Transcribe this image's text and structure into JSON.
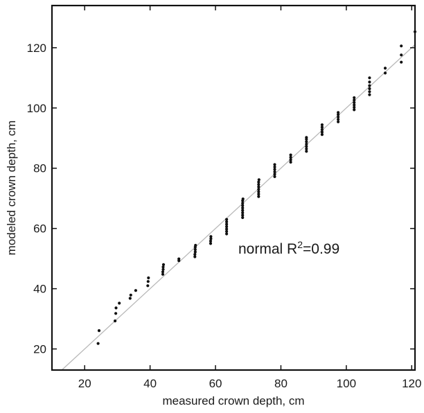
{
  "chart_data": {
    "type": "scatter",
    "title": "",
    "xlabel": "measured crown depth, cm",
    "ylabel": "modeled crown depth, cm",
    "xlim": [
      10,
      121
    ],
    "ylim": [
      13,
      134
    ],
    "xticks": [
      20,
      40,
      60,
      80,
      100,
      120
    ],
    "yticks": [
      20,
      40,
      60,
      80,
      100,
      120
    ],
    "grid": false,
    "annotation": {
      "prefix": "normal R",
      "sup": "2",
      "suffix": "=0.99"
    },
    "fit_line": {
      "x": [
        10,
        121
      ],
      "y": [
        10,
        121
      ],
      "color": "#b8b8b8"
    },
    "point_color": "#111111",
    "series": [
      {
        "points": [
          [
            24.4,
            26.1
          ],
          [
            24.1,
            21.8
          ],
          [
            29.3,
            29.3
          ],
          [
            29.5,
            31.8
          ],
          [
            29.6,
            33.6
          ],
          [
            30.6,
            35.2
          ],
          [
            33.9,
            36.8
          ],
          [
            34.1,
            37.9
          ],
          [
            35.6,
            39.4
          ],
          [
            39.3,
            41.0
          ],
          [
            39.4,
            42.4
          ],
          [
            39.5,
            43.6
          ],
          [
            43.9,
            44.8
          ],
          [
            43.9,
            45.6
          ],
          [
            44.0,
            46.4
          ],
          [
            44.0,
            47.2
          ],
          [
            44.1,
            48.0
          ],
          [
            48.8,
            49.3
          ],
          [
            48.8,
            49.9
          ],
          [
            53.7,
            50.6
          ],
          [
            53.7,
            51.4
          ],
          [
            53.8,
            52.2
          ],
          [
            53.8,
            53.0
          ],
          [
            53.8,
            53.8
          ],
          [
            53.9,
            54.4
          ],
          [
            58.5,
            55.0
          ],
          [
            58.5,
            55.8
          ],
          [
            58.6,
            56.6
          ],
          [
            58.6,
            57.3
          ],
          [
            63.4,
            58.2
          ],
          [
            63.4,
            59.0
          ],
          [
            63.4,
            59.8
          ],
          [
            63.4,
            60.6
          ],
          [
            63.4,
            61.4
          ],
          [
            63.4,
            62.2
          ],
          [
            63.4,
            63.0
          ],
          [
            68.3,
            63.6
          ],
          [
            68.3,
            64.4
          ],
          [
            68.3,
            65.2
          ],
          [
            68.3,
            66.0
          ],
          [
            68.3,
            66.8
          ],
          [
            68.3,
            67.6
          ],
          [
            68.3,
            68.4
          ],
          [
            68.3,
            69.2
          ],
          [
            68.4,
            69.8
          ],
          [
            73.2,
            70.6
          ],
          [
            73.2,
            71.4
          ],
          [
            73.2,
            72.2
          ],
          [
            73.2,
            73.0
          ],
          [
            73.2,
            73.8
          ],
          [
            73.2,
            74.6
          ],
          [
            73.2,
            75.4
          ],
          [
            73.3,
            76.2
          ],
          [
            78.1,
            77.2
          ],
          [
            78.1,
            78.0
          ],
          [
            78.1,
            78.8
          ],
          [
            78.1,
            79.6
          ],
          [
            78.1,
            80.4
          ],
          [
            78.1,
            81.2
          ],
          [
            83.0,
            82.0
          ],
          [
            83.0,
            82.8
          ],
          [
            83.0,
            83.6
          ],
          [
            83.0,
            84.4
          ],
          [
            87.8,
            85.6
          ],
          [
            87.8,
            86.4
          ],
          [
            87.8,
            87.2
          ],
          [
            87.8,
            88.0
          ],
          [
            87.8,
            88.8
          ],
          [
            87.8,
            89.6
          ],
          [
            87.8,
            90.2
          ],
          [
            92.6,
            91.2
          ],
          [
            92.6,
            92.0
          ],
          [
            92.6,
            92.8
          ],
          [
            92.6,
            93.6
          ],
          [
            92.6,
            94.4
          ],
          [
            97.5,
            95.4
          ],
          [
            97.5,
            96.2
          ],
          [
            97.5,
            97.0
          ],
          [
            97.5,
            97.8
          ],
          [
            97.5,
            98.5
          ],
          [
            102.4,
            99.4
          ],
          [
            102.4,
            100.2
          ],
          [
            102.4,
            101.0
          ],
          [
            102.4,
            101.8
          ],
          [
            102.4,
            102.6
          ],
          [
            102.4,
            103.4
          ],
          [
            107.1,
            104.4
          ],
          [
            107.1,
            105.4
          ],
          [
            107.1,
            106.4
          ],
          [
            107.1,
            107.4
          ],
          [
            107.1,
            108.6
          ],
          [
            107.1,
            110.0
          ],
          [
            111.9,
            111.6
          ],
          [
            111.9,
            113.2
          ],
          [
            116.8,
            115.2
          ],
          [
            116.8,
            117.6
          ],
          [
            116.8,
            120.6
          ],
          [
            121.0,
            125.3
          ]
        ]
      }
    ]
  }
}
